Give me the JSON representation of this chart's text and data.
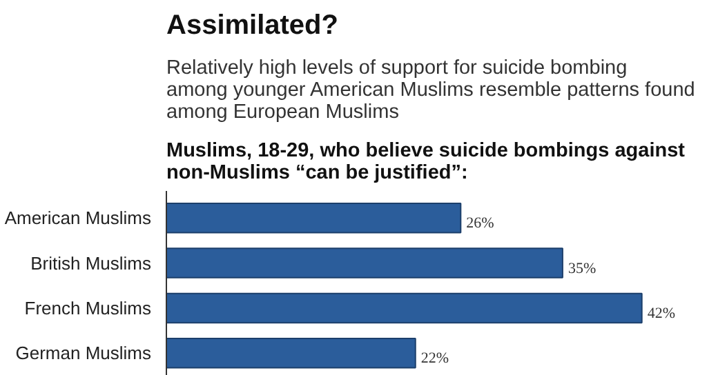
{
  "chart_data": {
    "type": "bar",
    "orientation": "horizontal",
    "title": "Assimilated?",
    "subtitle": "Relatively high levels of support for suicide bombing among younger American Muslims resemble patterns found among European Muslims",
    "xlabel": "Muslims, 18-29, who believe suicide bombings against non-Muslims “can be justified”:",
    "categories": [
      "American Muslims",
      "British Muslims",
      "French Muslims",
      "German Muslims"
    ],
    "values": [
      26,
      35,
      42,
      22
    ],
    "value_labels": [
      "26%",
      "35%",
      "42%",
      "22%"
    ],
    "color": "#2b5d9b"
  }
}
